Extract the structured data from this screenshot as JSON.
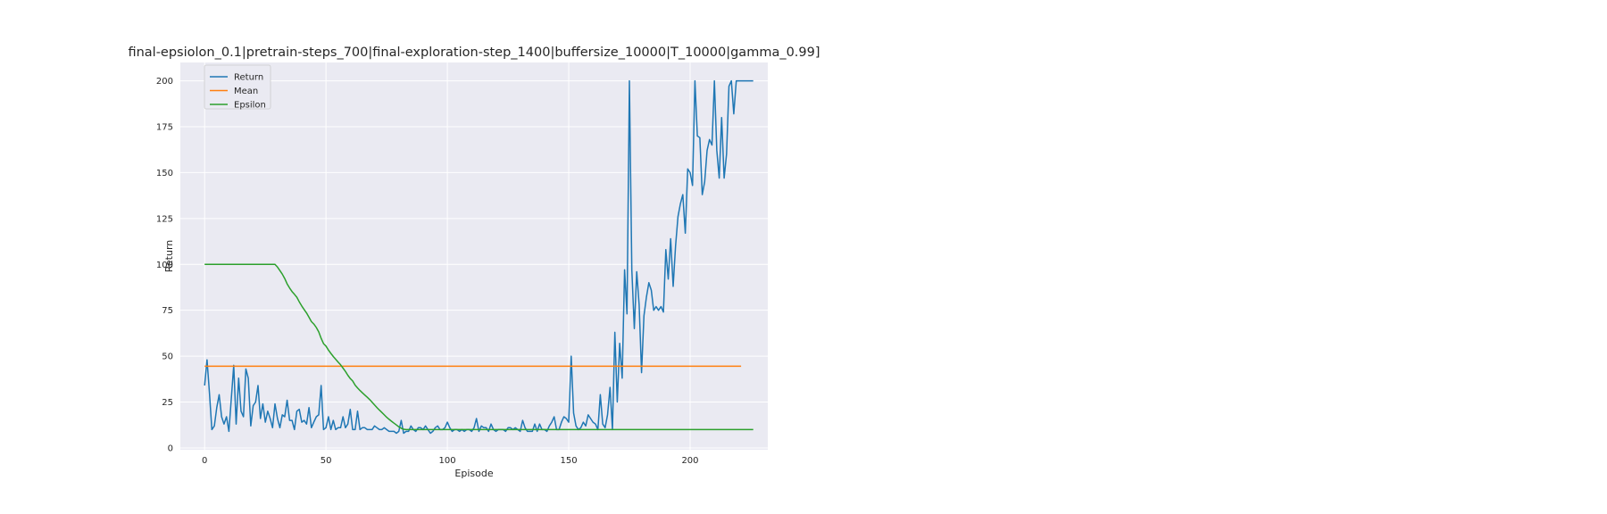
{
  "chart_data": {
    "type": "line",
    "title": "final-epsiolon_0.1|pretrain-steps_700|final-exploration-step_1400|buffersize_10000|T_10000|gamma_0.99]",
    "xlabel": "Episode",
    "ylabel": "Return",
    "xlim": [
      -10,
      232
    ],
    "ylim": [
      -1,
      210
    ],
    "xticks": [
      0,
      50,
      100,
      150,
      200
    ],
    "yticks": [
      0,
      25,
      50,
      75,
      100,
      125,
      150,
      175,
      200
    ],
    "grid": true,
    "legend_position": "upper-left",
    "series": [
      {
        "name": "Return",
        "color": "#1f77b4",
        "values": [
          34,
          48,
          30,
          10,
          12,
          22,
          29,
          17,
          13,
          17,
          9,
          27,
          45,
          13,
          38,
          20,
          17,
          43,
          38,
          12,
          23,
          25,
          34,
          16,
          24,
          14,
          20,
          16,
          11,
          24,
          16,
          11,
          18,
          17,
          26,
          15,
          15,
          10,
          20,
          21,
          14,
          15,
          13,
          22,
          11,
          14,
          17,
          18,
          34,
          10,
          11,
          17,
          10,
          15,
          10,
          11,
          11,
          17,
          11,
          13,
          21,
          10,
          10,
          20,
          10,
          11,
          11,
          10,
          10,
          10,
          12,
          11,
          10,
          10,
          11,
          10,
          9,
          9,
          9,
          8,
          9,
          15,
          8,
          9,
          9,
          12,
          10,
          9,
          11,
          11,
          10,
          12,
          10,
          8,
          9,
          11,
          12,
          10,
          10,
          11,
          14,
          11,
          9,
          10,
          10,
          9,
          10,
          9,
          10,
          10,
          9,
          11,
          16,
          9,
          12,
          11,
          11,
          9,
          13,
          10,
          9,
          10,
          10,
          10,
          9,
          11,
          11,
          10,
          11,
          10,
          9,
          15,
          11,
          9,
          9,
          9,
          13,
          9,
          13,
          10,
          10,
          9,
          12,
          14,
          17,
          10,
          10,
          14,
          17,
          16,
          14,
          50,
          19,
          12,
          10,
          11,
          14,
          12,
          18,
          16,
          14,
          13,
          10,
          29,
          13,
          11,
          18,
          33,
          10,
          63,
          25,
          57,
          38,
          97,
          73,
          200,
          97,
          65,
          96,
          78,
          41,
          72,
          82,
          90,
          86,
          75,
          77,
          75,
          77,
          74,
          108,
          92,
          114,
          88,
          110,
          126,
          133,
          138,
          117,
          152,
          150,
          143,
          200,
          170,
          169,
          138,
          145,
          162,
          168,
          165,
          200,
          162,
          147,
          180,
          147,
          160,
          197,
          200,
          182,
          200,
          200,
          200,
          200,
          200,
          200,
          200,
          200
        ]
      },
      {
        "name": "Mean",
        "color": "#ff7f0e",
        "values": [
          44.5,
          44.5
        ],
        "x": [
          0,
          221
        ]
      },
      {
        "name": "Epsilon",
        "color": "#2ca02c",
        "values": [
          100,
          100,
          100,
          100,
          100,
          100,
          100,
          100,
          100,
          100,
          100,
          100,
          100,
          100,
          100,
          100,
          100,
          100,
          100,
          100,
          100,
          100,
          100,
          100,
          100,
          100,
          100,
          100,
          100,
          100,
          98.5,
          96.6,
          94.7,
          92.3,
          89.4,
          87.1,
          85.2,
          83.7,
          82.1,
          79.6,
          77.3,
          75.4,
          73.5,
          71.2,
          68.8,
          67.5,
          65.6,
          63.2,
          59.7,
          56.8,
          55.5,
          53.3,
          51.5,
          49.8,
          48.3,
          46.8,
          45.3,
          43.5,
          41.7,
          39.6,
          37.8,
          36.5,
          34.2,
          32.7,
          31.3,
          30.0,
          28.8,
          27.6,
          26.3,
          24.9,
          23.4,
          22.0,
          20.6,
          19.3,
          18.0,
          16.7,
          15.6,
          14.5,
          13.5,
          12.5,
          11.5,
          10.7,
          10.2,
          10.0
        ]
      }
    ]
  }
}
